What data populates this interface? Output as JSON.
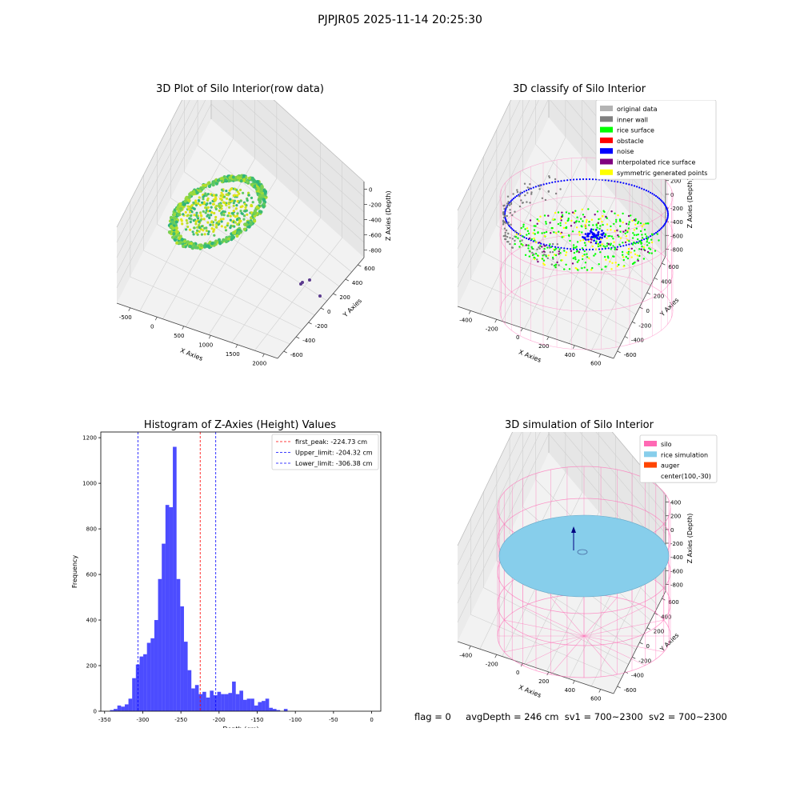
{
  "figure_title": "PJPJR05 2025-11-14 20:25:30",
  "footer": {
    "flag": "flag = 0",
    "avg_depth": "avgDepth = 246 cm",
    "sv1": "sv1 = 700~2300",
    "sv2": "sv2 = 700~2300"
  },
  "colors": {
    "original_data": "#b3b3b3",
    "inner_wall": "#808080",
    "rice_surface": "#00ff00",
    "obstacle": "#ff0000",
    "noise": "#0000ff",
    "interpolated_rice_surface": "#800080",
    "symmetric_generated_points": "#ffff00",
    "silo": "#ff69b4",
    "rice_simulation": "#87ceeb",
    "auger": "#ff4500",
    "histogram": "#0000ff",
    "first_peak": "#ff0000",
    "limits": "#0000ff"
  },
  "chart_data": [
    {
      "type": "scatter",
      "subtype": "3d",
      "title": "3D Plot of Silo Interior(row data)",
      "xlabel": "X Axies",
      "ylabel": "Y Axies",
      "zlabel": "Z Axies (Depth)",
      "x_ticks": [
        "-500",
        "0",
        "500",
        "1000",
        "1500",
        "2000"
      ],
      "y_ticks": [
        "-600",
        "-400",
        "-200",
        "0",
        "200",
        "400",
        "600"
      ],
      "z_ticks": [
        "-800",
        "-600",
        "-400",
        "-200",
        "0"
      ],
      "colormap": "viridis",
      "outlier_points": [
        [
          1950,
          350,
          -700
        ],
        [
          1980,
          380,
          -690
        ],
        [
          2050,
          300,
          -700
        ],
        [
          2150,
          150,
          -720
        ]
      ]
    },
    {
      "type": "scatter",
      "subtype": "3d",
      "title": "3D classify of Silo Interior",
      "xlabel": "X Axies",
      "ylabel": "Y Axies",
      "zlabel": "Z Axies (Depth)",
      "x_ticks": [
        "-400",
        "-200",
        "0",
        "200",
        "400",
        "600"
      ],
      "y_ticks": [
        "-600",
        "-400",
        "-200",
        "0",
        "200",
        "400",
        "600"
      ],
      "z_ticks": [
        "-800",
        "-600",
        "-400",
        "-200",
        "0",
        "200",
        "400"
      ],
      "legend": {
        "position": "upper right",
        "entries": [
          {
            "label": "original data",
            "color_key": "original_data"
          },
          {
            "label": "inner wall",
            "color_key": "inner_wall"
          },
          {
            "label": "rice surface",
            "color_key": "rice_surface"
          },
          {
            "label": "obstacle",
            "color_key": "obstacle"
          },
          {
            "label": "noise",
            "color_key": "noise"
          },
          {
            "label": "interpolated rice surface",
            "color_key": "interpolated_rice_surface"
          },
          {
            "label": "symmetric generated points",
            "color_key": "symmetric_generated_points"
          }
        ]
      }
    },
    {
      "type": "bar",
      "subtype": "histogram",
      "title": "Histogram of Z-Axies (Height) Values",
      "xlabel": "Depth (cm)",
      "ylabel": "Frequency",
      "xlim": [
        -355,
        12
      ],
      "ylim": [
        0,
        1225
      ],
      "x_ticks": [
        -350,
        -300,
        -250,
        -200,
        -150,
        -100,
        -50,
        0
      ],
      "y_ticks": [
        0,
        200,
        400,
        600,
        800,
        1000,
        1200
      ],
      "bin_start": -343,
      "bin_width": 4.85,
      "values": [
        5,
        10,
        25,
        20,
        30,
        55,
        145,
        205,
        240,
        250,
        300,
        320,
        400,
        580,
        735,
        905,
        895,
        1160,
        580,
        460,
        305,
        180,
        100,
        115,
        75,
        85,
        60,
        90,
        70,
        85,
        75,
        75,
        80,
        130,
        75,
        90,
        50,
        55,
        55,
        25,
        40,
        45,
        55,
        15,
        10,
        5,
        0,
        10
      ],
      "vlines": [
        {
          "x": -224.73,
          "label": "first_peak: -224.73 cm",
          "color_key": "first_peak"
        },
        {
          "x": -204.32,
          "label": "Upper_limit: -204.32 cm",
          "color_key": "limits"
        },
        {
          "x": -306.38,
          "label": "Lower_limit: -306.38 cm",
          "color_key": "limits"
        }
      ],
      "legend_position": "upper right",
      "grid": false
    },
    {
      "type": "scatter",
      "subtype": "3d",
      "title": "3D simulation of Silo Interior",
      "xlabel": "X Axies",
      "ylabel": "Y Axies",
      "zlabel": "Z Axies (Depth)",
      "x_ticks": [
        "-400",
        "-200",
        "0",
        "200",
        "400",
        "600"
      ],
      "y_ticks": [
        "-600",
        "-400",
        "-200",
        "0",
        "200",
        "400",
        "600"
      ],
      "z_ticks": [
        "-800",
        "-600",
        "-400",
        "-200",
        "0",
        "200",
        "400"
      ],
      "legend": {
        "position": "upper right",
        "entries": [
          {
            "label": "silo",
            "color_key": "silo",
            "marker": "patch"
          },
          {
            "label": "rice simulation",
            "color_key": "rice_simulation",
            "marker": "patch"
          },
          {
            "label": "auger",
            "color_key": "auger",
            "marker": "patch"
          },
          {
            "label": "center(100,-30)",
            "color_key": null,
            "marker": "none"
          }
        ]
      }
    }
  ]
}
